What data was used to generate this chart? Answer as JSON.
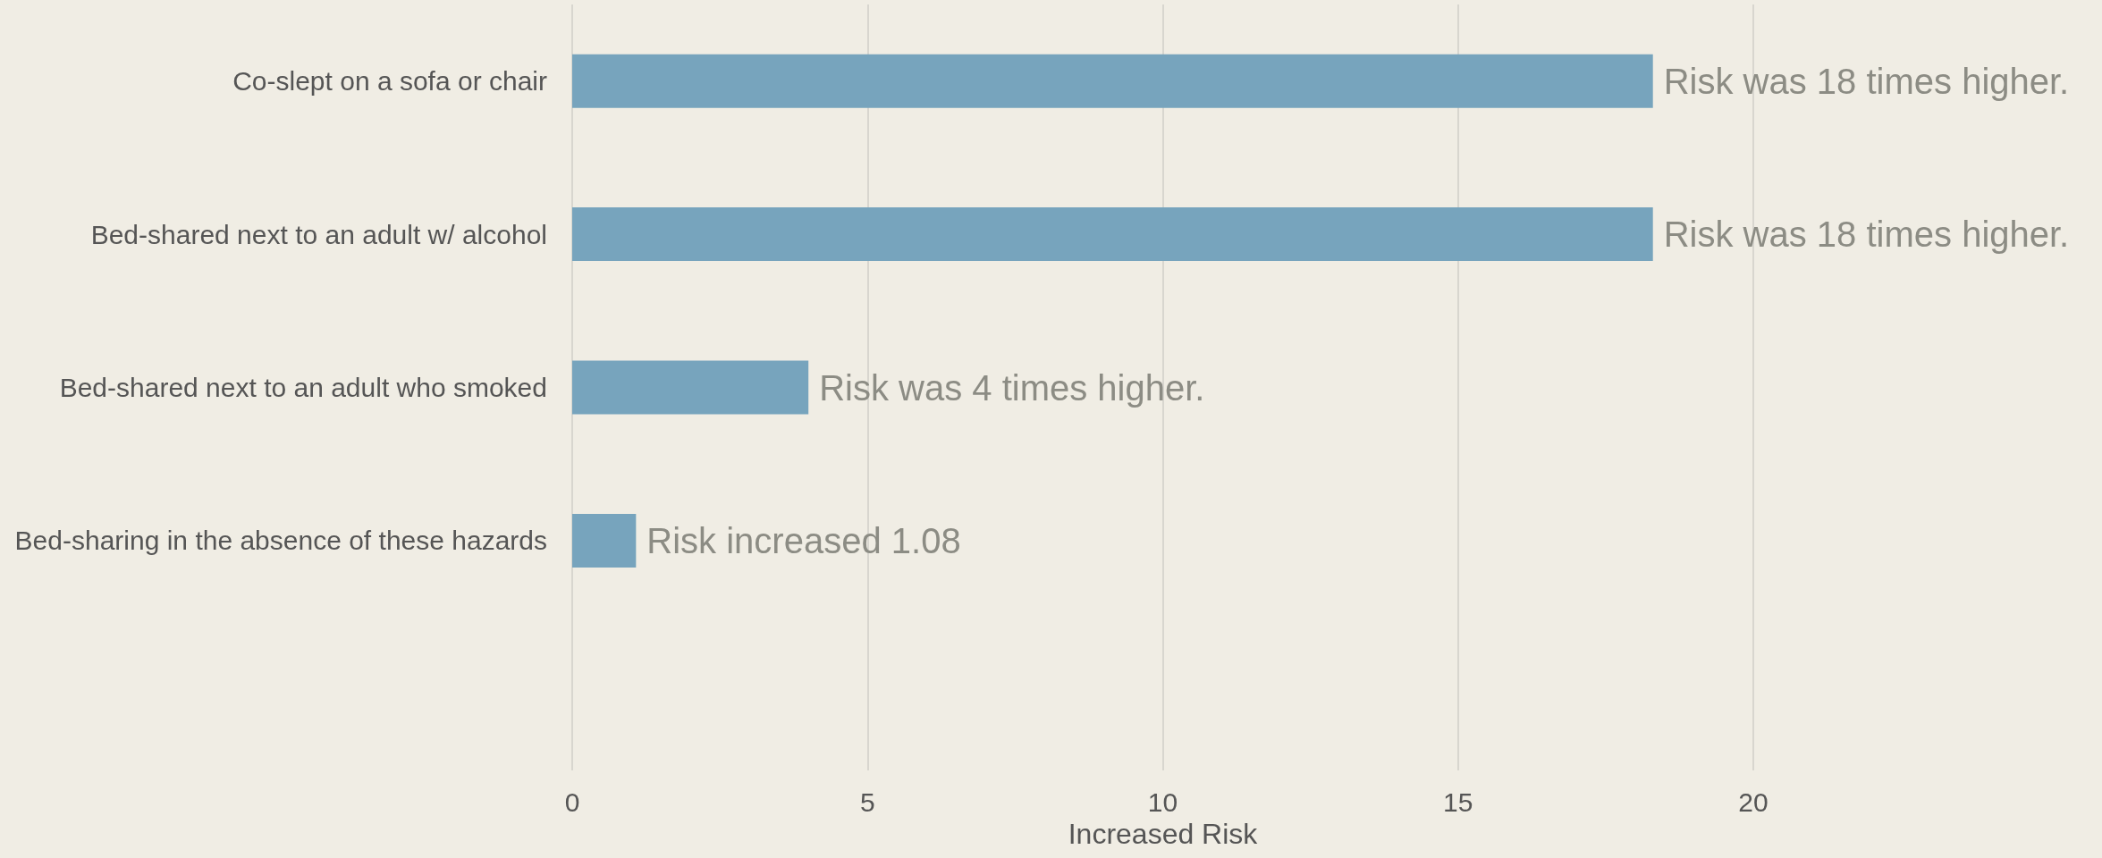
{
  "chart_data": {
    "type": "bar",
    "orientation": "horizontal",
    "xlabel": "Increased Risk",
    "categories": [
      "Co-slept on a sofa or chair",
      "Bed-shared next to an adult w/ alcohol",
      "Bed-shared next to an adult who smoked",
      "Bed-sharing in the absence of these hazards",
      null
    ],
    "values": [
      18.3,
      18.3,
      4.0,
      1.08,
      null
    ],
    "value_labels": [
      "Risk was 18 times higher.",
      "Risk was 18 times higher.",
      "Risk was 4 times higher.",
      "Risk increased 1.08",
      null
    ],
    "color": "#77a4bd",
    "xlim": [
      0,
      20
    ],
    "xticks": [
      0,
      5,
      10,
      15,
      20
    ],
    "grid": "x"
  }
}
